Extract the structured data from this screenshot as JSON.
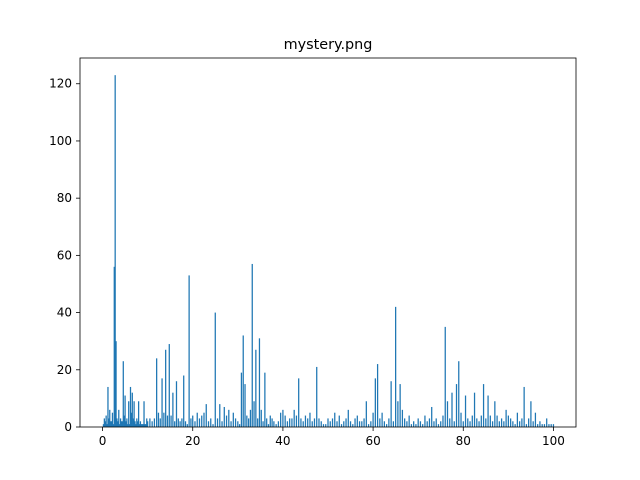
{
  "chart_data": {
    "type": "bar",
    "title": "mystery.png",
    "xlabel": "",
    "ylabel": "",
    "xlim": [
      -5,
      105
    ],
    "ylim": [
      0,
      129
    ],
    "x_ticks": [
      0,
      20,
      40,
      60,
      80,
      100
    ],
    "y_ticks": [
      0,
      20,
      40,
      60,
      80,
      100,
      120
    ],
    "bar_color": "#1f77b4",
    "bar_width": 0.2,
    "grid": false,
    "x": [
      0.2,
      0.4,
      0.6,
      0.8,
      1.0,
      1.2,
      1.4,
      1.6,
      1.8,
      2.0,
      2.2,
      2.4,
      2.6,
      2.8,
      3.0,
      3.2,
      3.4,
      3.6,
      3.8,
      4.0,
      4.2,
      4.4,
      4.6,
      4.8,
      5.0,
      5.2,
      5.4,
      5.6,
      5.8,
      6.0,
      6.2,
      6.4,
      6.6,
      6.8,
      7.0,
      7.2,
      7.4,
      7.6,
      7.8,
      8.0,
      8.2,
      8.4,
      8.6,
      8.8,
      9.0,
      9.2,
      9.4,
      9.6,
      9.8,
      10.0,
      10.5,
      11.0,
      11.5,
      12.0,
      12.4,
      12.8,
      13.2,
      13.6,
      14.0,
      14.4,
      14.8,
      15.2,
      15.6,
      16.0,
      16.4,
      16.8,
      17.2,
      17.6,
      18.0,
      18.4,
      18.8,
      19.2,
      19.6,
      20.0,
      20.5,
      21.0,
      21.5,
      22.0,
      22.5,
      23.0,
      23.5,
      24.0,
      24.5,
      25.0,
      25.5,
      26.0,
      26.5,
      27.0,
      27.5,
      28.0,
      28.5,
      29.0,
      29.5,
      30.0,
      30.4,
      30.8,
      31.2,
      31.6,
      32.0,
      32.4,
      32.8,
      33.2,
      33.6,
      34.0,
      34.4,
      34.8,
      35.2,
      35.6,
      36.0,
      36.4,
      36.8,
      37.2,
      37.6,
      38.0,
      38.5,
      39.0,
      39.5,
      40.0,
      40.5,
      41.0,
      41.5,
      42.0,
      42.5,
      43.0,
      43.5,
      44.0,
      44.5,
      45.0,
      45.5,
      46.0,
      46.5,
      47.0,
      47.5,
      48.0,
      48.5,
      49.0,
      49.5,
      50.0,
      50.5,
      51.0,
      51.5,
      52.0,
      52.5,
      53.0,
      53.5,
      54.0,
      54.5,
      55.0,
      55.5,
      56.0,
      56.5,
      57.0,
      57.5,
      58.0,
      58.5,
      59.0,
      59.5,
      60.0,
      60.5,
      61.0,
      61.5,
      62.0,
      62.5,
      63.0,
      63.5,
      64.0,
      64.5,
      65.0,
      65.5,
      66.0,
      66.5,
      67.0,
      67.5,
      68.0,
      68.5,
      69.0,
      69.5,
      70.0,
      70.5,
      71.0,
      71.5,
      72.0,
      72.5,
      73.0,
      73.5,
      74.0,
      74.5,
      75.0,
      75.5,
      76.0,
      76.5,
      77.0,
      77.5,
      78.0,
      78.5,
      79.0,
      79.5,
      80.0,
      80.5,
      81.0,
      81.5,
      82.0,
      82.5,
      83.0,
      83.5,
      84.0,
      84.5,
      85.0,
      85.5,
      86.0,
      86.5,
      87.0,
      87.5,
      88.0,
      88.5,
      89.0,
      89.5,
      90.0,
      90.5,
      91.0,
      91.5,
      92.0,
      92.5,
      93.0,
      93.5,
      94.0,
      94.5,
      95.0,
      95.5,
      96.0,
      96.5,
      97.0,
      97.5,
      98.0,
      98.5,
      99.0,
      99.5,
      100.0
    ],
    "values": [
      1,
      3,
      2,
      4,
      1,
      14,
      3,
      6,
      2,
      2,
      5,
      1,
      56,
      123,
      30,
      3,
      2,
      6,
      1,
      3,
      2,
      2,
      23,
      4,
      11,
      2,
      3,
      1,
      9,
      1,
      14,
      5,
      12,
      3,
      9,
      2,
      1,
      3,
      2,
      9,
      1,
      2,
      1,
      1,
      1,
      9,
      1,
      1,
      3,
      2,
      3,
      2,
      3,
      24,
      5,
      3,
      17,
      5,
      27,
      4,
      29,
      4,
      12,
      2,
      16,
      3,
      2,
      3,
      18,
      2,
      1,
      53,
      3,
      4,
      2,
      5,
      3,
      4,
      5,
      8,
      2,
      3,
      1,
      40,
      3,
      8,
      2,
      7,
      4,
      6,
      2,
      5,
      3,
      2,
      1,
      19,
      32,
      15,
      4,
      3,
      6,
      57,
      9,
      27,
      3,
      31,
      6,
      2,
      19,
      3,
      1,
      4,
      3,
      2,
      1,
      2,
      5,
      6,
      4,
      2,
      3,
      3,
      6,
      4,
      17,
      3,
      2,
      4,
      3,
      5,
      2,
      3,
      21,
      3,
      2,
      1,
      1,
      3,
      2,
      3,
      5,
      2,
      4,
      1,
      2,
      3,
      6,
      2,
      1,
      3,
      4,
      2,
      2,
      3,
      9,
      1,
      2,
      5,
      17,
      22,
      3,
      5,
      2,
      1,
      3,
      16,
      2,
      42,
      9,
      15,
      6,
      3,
      2,
      4,
      1,
      2,
      1,
      3,
      2,
      1,
      4,
      2,
      3,
      7,
      2,
      3,
      1,
      2,
      4,
      35,
      9,
      3,
      12,
      2,
      15,
      23,
      5,
      2,
      11,
      3,
      2,
      4,
      12,
      3,
      2,
      4,
      15,
      3,
      11,
      4,
      2,
      9,
      4,
      2,
      3,
      2,
      6,
      4,
      3,
      2,
      1,
      5,
      2,
      3,
      14,
      1,
      3,
      9,
      2,
      5,
      1,
      2,
      1,
      1,
      3,
      1,
      1,
      1
    ]
  }
}
